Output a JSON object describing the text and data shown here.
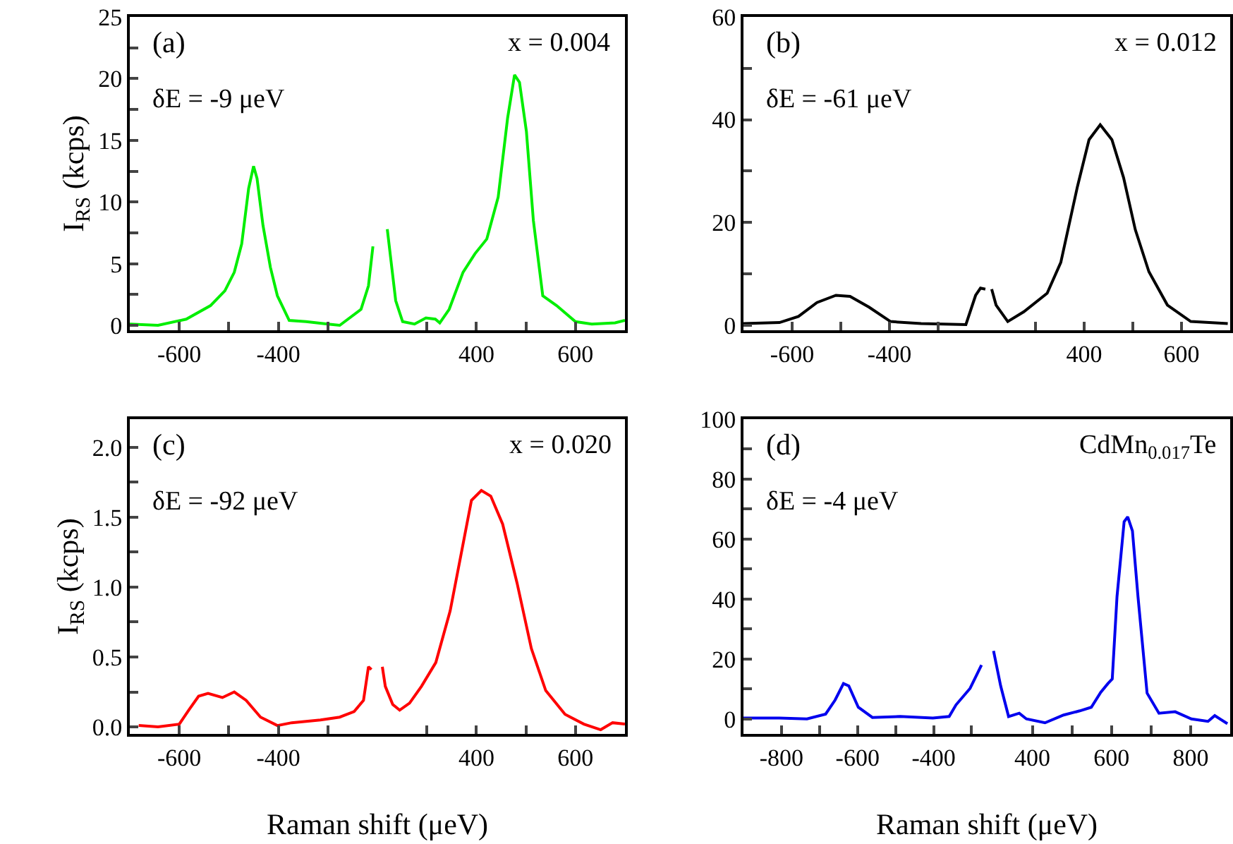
{
  "chart_data": [
    {
      "type": "line",
      "annotations": [
        "(a)",
        "δE = -9 μeV"
      ],
      "ylabel": "I$_{RS}$ (kcps)",
      "xlim": [
        -700,
        -200
      ],
      "xticks": [
        {
          "value": -600,
          "label": "-600"
        },
        {
          "value": -500,
          "label": null
        },
        {
          "value": -400,
          "label": "-400"
        },
        {
          "value": -300,
          "label": null
        }
      ],
      "ylim": [
        -0.4,
        25
      ],
      "yticks": [
        0,
        {
          "value": 2.5,
          "label": null
        },
        5,
        {
          "value": 7.5,
          "label": null
        },
        10,
        {
          "value": 12.5,
          "label": null
        },
        15,
        {
          "value": 17.5,
          "label": null
        },
        20,
        {
          "value": 22.5,
          "label": null
        },
        25
      ],
      "x": [
        -700,
        -643,
        -586,
        -537,
        -508,
        -489,
        -474,
        -460,
        -450,
        -443,
        -431,
        -416,
        -402,
        -378,
        -344,
        -300,
        -276,
        -233,
        -218,
        -209
      ],
      "series": [
        {
          "color": "#00ee00",
          "values": [
            0.1,
            0,
            0.5,
            1.6,
            2.8,
            4.3,
            6.6,
            11.1,
            12.9,
            11.9,
            8.1,
            4.7,
            2.4,
            0.4,
            0.3,
            0.1,
            0,
            1.3,
            3.2,
            6.4
          ]
        }
      ]
    },
    {
      "type": "line",
      "annotations": [
        "x = 0.004"
      ],
      "tick_labels": "x",
      "xlim": [
        200,
        700
      ],
      "xticks": [
        {
          "value": 300,
          "label": null
        },
        400,
        {
          "value": 500,
          "label": null
        },
        600
      ],
      "ylim": [
        -0.4,
        25
      ],
      "x": [
        220,
        227,
        237,
        251,
        275,
        298,
        317,
        326,
        345,
        373,
        397,
        421,
        444,
        463,
        477,
        487,
        501,
        515,
        534,
        562,
        600,
        633,
        680,
        700
      ],
      "series": [
        {
          "color": "#00ee00",
          "values": [
            7.8,
            5.4,
            2.0,
            0.3,
            0.1,
            0.6,
            0.5,
            0.2,
            1.3,
            4.3,
            5.8,
            7.0,
            10.4,
            16.8,
            20.3,
            19.7,
            15.7,
            8.5,
            2.4,
            1.6,
            0.3,
            0.1,
            0.2,
            0.4
          ]
        }
      ]
    },
    {
      "type": "line",
      "annotations": [
        "(b)",
        "δE = -61 μeV"
      ],
      "xlim": [
        -700,
        -200
      ],
      "xticks": [
        {
          "value": -600,
          "label": "-600"
        },
        {
          "value": -500,
          "label": null
        },
        {
          "value": -400,
          "label": "-400"
        },
        {
          "value": -300,
          "label": null
        }
      ],
      "ylim": [
        -1,
        60
      ],
      "yticks": [
        0,
        {
          "value": 10,
          "label": null
        },
        20,
        {
          "value": 30,
          "label": null
        },
        40,
        {
          "value": 50,
          "label": null
        },
        60
      ],
      "x": [
        -700,
        -626,
        -587,
        -549,
        -510,
        -481,
        -442,
        -398,
        -335,
        -243,
        -223,
        -213,
        -203
      ],
      "series": [
        {
          "color": "#000000",
          "values": [
            0.3,
            0.5,
            1.7,
            4.4,
            5.8,
            5.6,
            3.5,
            0.7,
            0.3,
            0.1,
            5.8,
            7.2,
            7.0
          ]
        }
      ]
    },
    {
      "type": "line",
      "annotations": [
        "x = 0.012"
      ],
      "tick_labels": "x",
      "xlim": [
        200,
        700
      ],
      "xticks": [
        {
          "value": 300,
          "label": null
        },
        400,
        {
          "value": 500,
          "label": null
        },
        600
      ],
      "ylim": [
        -1,
        60
      ],
      "x": [
        210,
        219,
        243,
        276,
        324,
        352,
        386,
        410,
        433,
        457,
        481,
        505,
        533,
        571,
        619,
        695
      ],
      "series": [
        {
          "color": "#000000",
          "values": [
            7.0,
            3.9,
            0.7,
            2.6,
            6.2,
            12.2,
            26.9,
            36.1,
            39.0,
            36.1,
            28.7,
            18.6,
            10.4,
            3.9,
            0.7,
            0.3
          ]
        }
      ]
    },
    {
      "type": "line",
      "annotations": [
        "(c)",
        "δE = -92 μeV"
      ],
      "ylabel": "I$_{RS}$ (kcps)",
      "xlabel": "Raman shift (μeV)",
      "xlim": [
        -700,
        -200
      ],
      "xticks": [
        {
          "value": -600,
          "label": "-600"
        },
        {
          "value": -500,
          "label": null
        },
        {
          "value": -400,
          "label": "-400"
        },
        {
          "value": -300,
          "label": null
        }
      ],
      "ylim": [
        -0.05,
        2.2
      ],
      "yticks": [
        {
          "value": 0,
          "label": "0.0"
        },
        {
          "value": 0.25,
          "label": null
        },
        0.5,
        {
          "value": 0.75,
          "label": null
        },
        {
          "value": 1,
          "label": "1.0"
        },
        {
          "value": 1.25,
          "label": null
        },
        1.5,
        {
          "value": 1.75,
          "label": null
        },
        {
          "value": 2,
          "label": "2.0"
        }
      ],
      "x": [
        -682,
        -643,
        -600,
        -581,
        -561,
        -542,
        -513,
        -489,
        -465,
        -436,
        -402,
        -373,
        -315,
        -276,
        -247,
        -228,
        -218,
        -212
      ],
      "series": [
        {
          "color": "#ff0000",
          "values": [
            0.01,
            0,
            0.02,
            0.12,
            0.22,
            0.24,
            0.21,
            0.25,
            0.19,
            0.07,
            0.01,
            0.03,
            0.05,
            0.07,
            0.11,
            0.19,
            0.43,
            0.41
          ]
        }
      ]
    },
    {
      "type": "line",
      "annotations": [
        "x = 0.020"
      ],
      "tick_labels": "x",
      "xlim": [
        200,
        700
      ],
      "xticks": [
        {
          "value": 300,
          "label": null
        },
        400,
        {
          "value": 500,
          "label": null
        },
        600
      ],
      "ylim": [
        -0.05,
        2.2
      ],
      "x": [
        210,
        216,
        231,
        245,
        265,
        289,
        318,
        347,
        371,
        390,
        410,
        429,
        453,
        482,
        511,
        540,
        579,
        617,
        651,
        675,
        700
      ],
      "series": [
        {
          "color": "#ff0000",
          "values": [
            0.43,
            0.29,
            0.16,
            0.12,
            0.17,
            0.29,
            0.46,
            0.83,
            1.27,
            1.62,
            1.69,
            1.65,
            1.45,
            1.03,
            0.56,
            0.26,
            0.09,
            0.02,
            -0.02,
            0.03,
            0.02
          ]
        }
      ]
    },
    {
      "type": "line",
      "annotations": [
        "(d)",
        "δE = -4 μeV"
      ],
      "xlabel": "Raman shift (μeV)",
      "xlim": [
        -900,
        -260
      ],
      "xticks": [
        -800,
        {
          "value": -700,
          "label": null
        },
        -600,
        {
          "value": -500,
          "label": null
        },
        -400,
        {
          "value": -300,
          "label": null
        }
      ],
      "ylim": [
        -5,
        100
      ],
      "yticks": [
        0,
        {
          "value": 10,
          "label": null
        },
        20,
        {
          "value": 30,
          "label": null
        },
        40,
        {
          "value": 50,
          "label": null
        },
        60,
        {
          "value": 70,
          "label": null
        },
        80,
        {
          "value": 90,
          "label": null
        },
        100
      ],
      "x": [
        -900,
        -806,
        -733,
        -684,
        -659,
        -637,
        -623,
        -598,
        -561,
        -488,
        -402,
        -359,
        -341,
        -304,
        -274
      ],
      "series": [
        {
          "color": "#0000ee",
          "values": [
            0.3,
            0.3,
            0,
            1.6,
            6.3,
            11.8,
            11,
            3.9,
            0.5,
            0.8,
            0.3,
            0.8,
            4.7,
            10.2,
            18.0
          ]
        }
      ]
    },
    {
      "type": "line",
      "annotations": [
        "CdMn$_{0.017}$Te"
      ],
      "tick_labels": "x",
      "xlim": [
        285,
        900
      ],
      "xticks": [
        400,
        {
          "value": 500,
          "label": null
        },
        600,
        {
          "value": 700,
          "label": null
        },
        800
      ],
      "ylim": [
        -5,
        100
      ],
      "x": [
        302,
        320,
        340,
        367,
        385,
        432,
        479,
        520,
        549,
        573,
        591,
        602,
        614,
        632,
        641,
        653,
        667,
        690,
        720,
        761,
        802,
        844,
        861,
        893
      ],
      "series": [
        {
          "color": "#0000ee",
          "values": [
            22.7,
            11,
            0.8,
            1.9,
            0,
            -1.3,
            1.3,
            2.7,
            3.9,
            8.9,
            11.8,
            13.3,
            40.8,
            65.8,
            67.4,
            62.7,
            40.8,
            8.6,
            1.9,
            2.4,
            0,
            -0.8,
            1.1,
            -1.6
          ]
        }
      ]
    }
  ]
}
